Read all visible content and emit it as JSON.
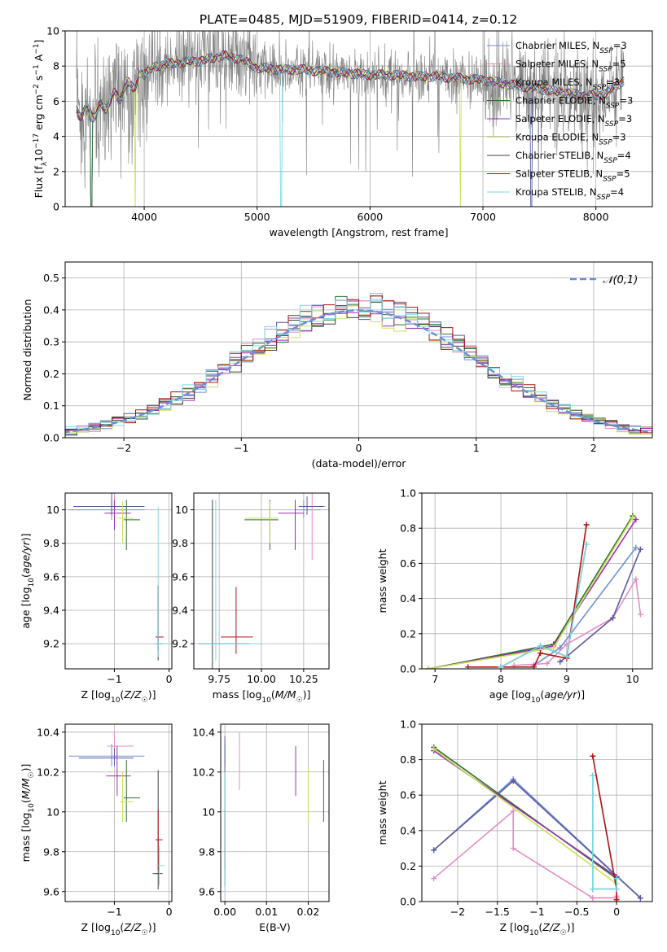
{
  "page": {
    "title": "PLATE=0485, MJD=51909, FIBERID=0414, z=0.12"
  },
  "colors": [
    "#7090d8",
    "#e38ec4",
    "#5a5aa0",
    "#2f6f2f",
    "#9b30b0",
    "#c8e25a",
    "#404040",
    "#b01010",
    "#7ed8e0"
  ],
  "series_names": [
    "Chabrier MILES, N_SSP=3",
    "Salpeter MILES, N_SSP=5",
    "Kroupa MILES, N_SSP=3",
    "Chabrier ELODIE, N_SSP=3",
    "Salpeter ELODIE, N_SSP=3",
    "Kroupa ELODIE, N_SSP=3",
    "Chabrier STELIB, N_SSP=4",
    "Salpeter STELIB, N_SSP=5",
    "Kroupa STELIB, N_SSP=4"
  ],
  "chart_data": [
    {
      "id": "spectrum",
      "type": "line",
      "title": "PLATE=0485, MJD=51909, FIBERID=0414, z=0.12",
      "xlabel": "wavelength [Angstrom, rest frame]",
      "ylabel": "Flux [f_λ 10^-17 erg cm^-2 s^-1 A^-1]",
      "xlim": [
        3300,
        8500
      ],
      "ylim": [
        0,
        10
      ],
      "xticks": [
        4000,
        5000,
        6000,
        7000,
        8000
      ],
      "yticks": [
        0,
        2,
        4,
        6,
        8,
        10
      ],
      "legend": "top-right",
      "data_color": "#808080",
      "anchors": {
        "x": [
          3400,
          3550,
          3700,
          3900,
          4100,
          4300,
          4500,
          4700,
          4850,
          5000,
          5200,
          5400,
          5600,
          5800,
          6000,
          6200,
          6400,
          6600,
          6800,
          7000,
          7200,
          7400,
          7600,
          7800,
          8000,
          8100,
          8250
        ],
        "y": [
          5.5,
          5.3,
          6.0,
          7.0,
          8.0,
          8.2,
          8.3,
          8.6,
          8.4,
          7.9,
          7.8,
          7.8,
          7.7,
          7.6,
          7.5,
          7.5,
          7.4,
          7.4,
          7.3,
          7.2,
          7.0,
          6.8,
          6.6,
          6.4,
          6.3,
          6.5,
          7.2
        ]
      },
      "absorption_dips": [
        {
          "x": 3530,
          "series": [
            0,
            2,
            3
          ]
        },
        {
          "x": 3920,
          "series": [
            5
          ]
        },
        {
          "x": 5215,
          "series": [
            8
          ]
        },
        {
          "x": 6800,
          "series": [
            5
          ]
        },
        {
          "x": 7430,
          "series": [
            2
          ]
        }
      ]
    },
    {
      "id": "residuals",
      "type": "step",
      "xlabel": "(data-model)/error",
      "ylabel": "Normed distribution",
      "xlim": [
        -2.5,
        2.5
      ],
      "ylim": [
        0,
        0.55
      ],
      "xticks": [
        -2,
        -1,
        0,
        1,
        2
      ],
      "yticks": [
        0.0,
        0.1,
        0.2,
        0.3,
        0.4,
        0.5
      ],
      "legend": "top-right",
      "reference_curve": {
        "name": "𝒩(0,1)",
        "color": "#6a8fd8"
      },
      "bin_width": 0.1
    },
    {
      "id": "age_vs_Z",
      "type": "errorbar",
      "xlabel": "Z [log10(Z/Z☉)]",
      "ylabel": "age [log10(age/yr)]",
      "xlim": [
        -1.9,
        0.05
      ],
      "ylim": [
        9.05,
        10.1
      ],
      "xticks": [
        -1,
        0
      ],
      "yticks": [
        9.2,
        9.4,
        9.6,
        9.8,
        10.0
      ],
      "points": [
        {
          "s": 0,
          "x": -1.05,
          "y": 10.0,
          "xerr": [
            0.78,
            0.6
          ],
          "yerr": [
            0.06,
            0.06
          ]
        },
        {
          "s": 1,
          "x": -1.0,
          "y": 10.02,
          "xerr": [
            0.35,
            0.35
          ],
          "yerr": [
            0.04,
            0.12
          ]
        },
        {
          "s": 2,
          "x": -1.05,
          "y": 10.02,
          "xerr": [
            0.7,
            0.6
          ],
          "yerr": [
            0.05,
            0.08
          ]
        },
        {
          "s": 3,
          "x": -0.78,
          "y": 9.94,
          "xerr": [
            0.05,
            0.25
          ],
          "yerr": [
            0.18,
            0.12
          ]
        },
        {
          "s": 4,
          "x": -1.0,
          "y": 9.98,
          "xerr": [
            0.18,
            0.3
          ],
          "yerr": [
            0.1,
            0.08
          ]
        },
        {
          "s": 5,
          "x": -0.85,
          "y": 9.95,
          "xerr": [
            0.1,
            0.2
          ],
          "yerr": [
            0.15,
            0.1
          ]
        },
        {
          "s": 6,
          "x": -0.2,
          "y": 9.2,
          "xerr": [
            0.05,
            0.08
          ],
          "yerr": [
            0.1,
            0.35
          ]
        },
        {
          "s": 7,
          "x": -0.2,
          "y": 9.24,
          "xerr": [
            0.05,
            0.1
          ],
          "yerr": [
            0.08,
            0.3
          ]
        },
        {
          "s": 8,
          "x": -0.2,
          "y": 9.2,
          "xerr": [
            0.1,
            0.15
          ],
          "yerr": [
            0.08,
            0.82
          ]
        }
      ]
    },
    {
      "id": "age_vs_mass",
      "type": "errorbar",
      "xlabel": "mass [log10(M/M☉)]",
      "ylabel": "",
      "xlim": [
        9.6,
        10.4
      ],
      "ylim": [
        9.05,
        10.1
      ],
      "xticks": [
        9.75,
        10.0,
        10.25
      ],
      "xticklabels": [
        "9.75",
        "10.00",
        "10.25"
      ],
      "yticks": [
        9.2,
        9.4,
        9.6,
        9.8,
        10.0
      ],
      "points": [
        {
          "s": 0,
          "x": 10.25,
          "y": 10.0,
          "xerr": [
            0.05,
            0.1
          ],
          "yerr": [
            0.05,
            0.06
          ]
        },
        {
          "s": 1,
          "x": 10.3,
          "y": 10.02,
          "xerr": [
            0.05,
            0.08
          ],
          "yerr": [
            0.32,
            0.08
          ]
        },
        {
          "s": 2,
          "x": 10.27,
          "y": 10.02,
          "xerr": [
            0.05,
            0.1
          ],
          "yerr": [
            0.05,
            0.06
          ]
        },
        {
          "s": 3,
          "x": 10.05,
          "y": 9.94,
          "xerr": [
            0.15,
            0.05
          ],
          "yerr": [
            0.18,
            0.12
          ]
        },
        {
          "s": 4,
          "x": 10.2,
          "y": 9.98,
          "xerr": [
            0.1,
            0.05
          ],
          "yerr": [
            0.22,
            0.08
          ]
        },
        {
          "s": 5,
          "x": 10.05,
          "y": 9.95,
          "xerr": [
            0.15,
            0.05
          ],
          "yerr": [
            0.15,
            0.1
          ]
        },
        {
          "s": 6,
          "x": 9.71,
          "y": 9.2,
          "xerr": [
            0.08,
            0.22
          ],
          "yerr": [
            0.15,
            0.86
          ]
        },
        {
          "s": 7,
          "x": 9.85,
          "y": 9.24,
          "xerr": [
            0.09,
            0.1
          ],
          "yerr": [
            0.1,
            0.3
          ]
        },
        {
          "s": 8,
          "x": 9.73,
          "y": 9.2,
          "xerr": [
            0.1,
            0.27
          ],
          "yerr": [
            0.1,
            0.86
          ]
        }
      ]
    },
    {
      "id": "mw_vs_age",
      "type": "line",
      "xlabel": "age [log10(age/yr)]",
      "ylabel": "mass weight",
      "xlim": [
        6.8,
        10.3
      ],
      "ylim": [
        0,
        1
      ],
      "xticks": [
        7,
        8,
        9,
        10
      ],
      "yticks": [
        0.0,
        0.2,
        0.4,
        0.6,
        0.8,
        1.0
      ],
      "series": [
        {
          "s": 0,
          "x": [
            8.5,
            8.9,
            10.05
          ],
          "y": [
            0.02,
            0.12,
            0.69
          ]
        },
        {
          "s": 1,
          "x": [
            8.2,
            8.7,
            9.0,
            9.7,
            10.05,
            10.12
          ],
          "y": [
            0.02,
            0.03,
            0.14,
            0.29,
            0.51,
            0.31
          ]
        },
        {
          "s": 2,
          "x": [
            8.9,
            9.0,
            9.7,
            10.12
          ],
          "y": [
            0.04,
            0.07,
            0.29,
            0.68
          ]
        },
        {
          "s": 3,
          "x": [
            6.9,
            8.8,
            10.0
          ],
          "y": [
            0.0,
            0.14,
            0.87
          ]
        },
        {
          "s": 4,
          "x": [
            6.9,
            8.8,
            10.05
          ],
          "y": [
            0.0,
            0.13,
            0.85
          ]
        },
        {
          "s": 5,
          "x": [
            6.9,
            8.8,
            10.0
          ],
          "y": [
            0.0,
            0.12,
            0.86
          ]
        },
        {
          "s": 6,
          "x": [
            8.0,
            8.6,
            9.0,
            9.3
          ],
          "y": [
            0.01,
            0.13,
            0.07,
            0.71
          ]
        },
        {
          "s": 7,
          "x": [
            7.5,
            8.5,
            8.6,
            9.0,
            9.3
          ],
          "y": [
            0.01,
            0.01,
            0.09,
            0.06,
            0.82
          ]
        },
        {
          "s": 8,
          "x": [
            8.0,
            8.6,
            9.0,
            9.3
          ],
          "y": [
            0.01,
            0.13,
            0.07,
            0.71
          ]
        }
      ]
    },
    {
      "id": "mass_vs_Z",
      "type": "errorbar",
      "xlabel": "Z [log10(Z/Z☉)]",
      "ylabel": "mass [log10(M/M☉)]",
      "xlim": [
        -1.9,
        0.05
      ],
      "ylim": [
        9.55,
        10.44
      ],
      "xticks": [
        -1,
        0
      ],
      "yticks": [
        9.6,
        9.8,
        10.0,
        10.2,
        10.4
      ],
      "points": [
        {
          "s": 0,
          "x": -1.05,
          "y": 10.28,
          "xerr": [
            0.78,
            0.6
          ],
          "yerr": [
            0.05,
            0.06
          ]
        },
        {
          "s": 1,
          "x": -1.0,
          "y": 10.33,
          "xerr": [
            0.13,
            0.35
          ],
          "yerr": [
            0.07,
            0.07
          ]
        },
        {
          "s": 2,
          "x": -1.0,
          "y": 10.27,
          "xerr": [
            0.65,
            0.35
          ],
          "yerr": [
            0.04,
            0.05
          ]
        },
        {
          "s": 3,
          "x": -0.78,
          "y": 10.07,
          "xerr": [
            0.05,
            0.25
          ],
          "yerr": [
            0.12,
            0.19
          ]
        },
        {
          "s": 4,
          "x": -0.95,
          "y": 10.18,
          "xerr": [
            0.2,
            0.25
          ],
          "yerr": [
            0.1,
            0.15
          ]
        },
        {
          "s": 5,
          "x": -0.85,
          "y": 10.05,
          "xerr": [
            0.05,
            0.2
          ],
          "yerr": [
            0.1,
            0.15
          ]
        },
        {
          "s": 6,
          "x": -0.2,
          "y": 9.69,
          "xerr": [
            0.1,
            0.08
          ],
          "yerr": [
            0.08,
            0.52
          ]
        },
        {
          "s": 7,
          "x": -0.2,
          "y": 9.86,
          "xerr": [
            0.05,
            0.08
          ],
          "yerr": [
            0.15,
            0.15
          ]
        },
        {
          "s": 8,
          "x": -0.18,
          "y": 9.73,
          "xerr": [
            0.05,
            0.1
          ],
          "yerr": [
            0.1,
            0.1
          ]
        }
      ]
    },
    {
      "id": "mass_vs_ebv",
      "type": "errorbar",
      "xlabel": "E(B-V)",
      "ylabel": "",
      "xlim": [
        -0.001,
        0.025
      ],
      "ylim": [
        9.55,
        10.44
      ],
      "xticks": [
        0.0,
        0.01,
        0.02
      ],
      "xticklabels": [
        "0.00",
        "0.01",
        "0.02"
      ],
      "yticks": [
        9.6,
        9.8,
        10.0,
        10.2,
        10.4
      ],
      "points": [
        {
          "s": 0,
          "x": 0.0,
          "y": 10.28,
          "xerr": [
            0,
            0
          ],
          "yerr": [
            0.05,
            0.06
          ]
        },
        {
          "s": 1,
          "x": 0.0035,
          "y": 10.25,
          "xerr": [
            0,
            0
          ],
          "yerr": [
            0.14,
            0.15
          ]
        },
        {
          "s": 2,
          "x": 0.0,
          "y": 10.24,
          "xerr": [
            0,
            0
          ],
          "yerr": [
            0.04,
            0.14
          ]
        },
        {
          "s": 3,
          "x": 0.0237,
          "y": 10.1,
          "xerr": [
            0,
            0
          ],
          "yerr": [
            0.15,
            0.16
          ]
        },
        {
          "s": 4,
          "x": 0.017,
          "y": 10.18,
          "xerr": [
            0,
            0
          ],
          "yerr": [
            0.1,
            0.15
          ]
        },
        {
          "s": 5,
          "x": 0.02,
          "y": 10.08,
          "xerr": [
            0,
            0
          ],
          "yerr": [
            0.14,
            0.14
          ]
        },
        {
          "s": 6,
          "x": 0.0,
          "y": 9.69,
          "xerr": [
            0,
            0
          ],
          "yerr": [
            0.06,
            0.51
          ]
        },
        {
          "s": 7,
          "x": 0.0,
          "y": 9.86,
          "xerr": [
            0,
            0
          ],
          "yerr": [
            0.15,
            0.15
          ]
        },
        {
          "s": 8,
          "x": 0.0,
          "y": 9.9,
          "xerr": [
            0,
            0
          ],
          "yerr": [
            0.3,
            0.3
          ]
        }
      ]
    },
    {
      "id": "mw_vs_Z",
      "type": "line",
      "xlabel": "Z [log10(Z/Z☉)]",
      "ylabel": "mass weight",
      "xlim": [
        -2.45,
        0.45
      ],
      "ylim": [
        0,
        1
      ],
      "xticks": [
        -2.0,
        -1.5,
        -1.0,
        -0.5,
        0.0
      ],
      "yticks": [
        0.0,
        0.2,
        0.4,
        0.6,
        0.8,
        1.0
      ],
      "series": [
        {
          "s": 0,
          "x": [
            -2.3,
            -1.3,
            0.3
          ],
          "y": [
            0.29,
            0.69,
            0.02
          ]
        },
        {
          "s": 1,
          "x": [
            -2.3,
            -1.3,
            -1.3,
            -0.3,
            0.0,
            0.0
          ],
          "y": [
            0.13,
            0.51,
            0.3,
            0.02,
            0.02,
            0.03
          ]
        },
        {
          "s": 2,
          "x": [
            -2.3,
            -1.3,
            0.3
          ],
          "y": [
            0.29,
            0.68,
            0.02
          ]
        },
        {
          "s": 3,
          "x": [
            -2.3,
            0.0
          ],
          "y": [
            0.87,
            0.13
          ]
        },
        {
          "s": 4,
          "x": [
            -2.3,
            0.0
          ],
          "y": [
            0.85,
            0.14
          ]
        },
        {
          "s": 5,
          "x": [
            -2.3,
            0.0
          ],
          "y": [
            0.86,
            0.1
          ]
        },
        {
          "s": 6,
          "x": [
            -0.3,
            -0.3,
            0.0,
            0.0
          ],
          "y": [
            0.71,
            0.07,
            0.07,
            0.13
          ]
        },
        {
          "s": 7,
          "x": [
            -0.3,
            0.0,
            0.0
          ],
          "y": [
            0.82,
            0.07,
            0.01
          ]
        },
        {
          "s": 8,
          "x": [
            -0.3,
            -0.3,
            0.0,
            0.0
          ],
          "y": [
            0.71,
            0.07,
            0.07,
            0.13
          ]
        }
      ]
    }
  ]
}
